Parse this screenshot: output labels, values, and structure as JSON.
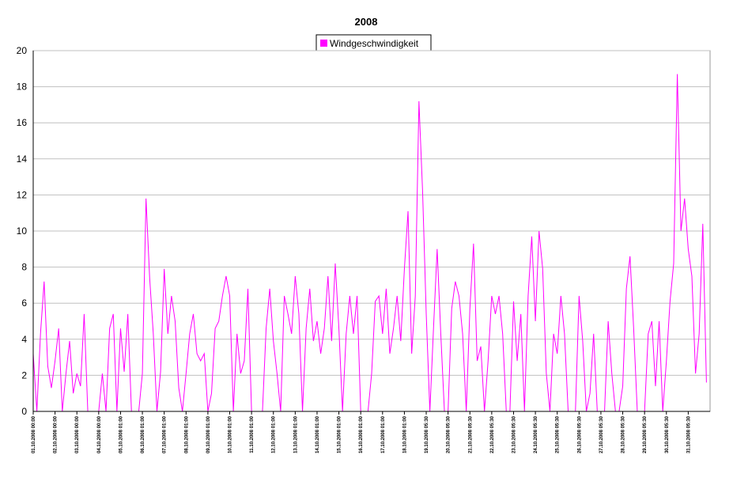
{
  "chart_data": {
    "type": "line",
    "title": "2008",
    "categories": [
      "01.10.2008 00:00",
      null,
      null,
      null,
      null,
      null,
      "02.10.2008 00:00",
      null,
      null,
      null,
      null,
      null,
      "03.10.2008 00:00",
      null,
      null,
      null,
      null,
      null,
      "04.10.2008 00:00",
      null,
      null,
      null,
      null,
      null,
      "05.10.2008 01:00",
      null,
      null,
      null,
      null,
      null,
      "06.10.2008 01:00",
      null,
      null,
      null,
      null,
      null,
      "07.10.2008 01:00",
      null,
      null,
      null,
      null,
      null,
      "08.10.2008 01:00",
      null,
      null,
      null,
      null,
      null,
      "09.10.2008 01:00",
      null,
      null,
      null,
      null,
      null,
      "10.10.2008 01:00",
      null,
      null,
      null,
      null,
      null,
      "11.10.2008 01:00",
      null,
      null,
      null,
      null,
      null,
      "12.10.2008 01:00",
      null,
      null,
      null,
      null,
      null,
      "13.10.2008 01:00",
      null,
      null,
      null,
      null,
      null,
      "14.10.2008 01:00",
      null,
      null,
      null,
      null,
      null,
      "15.10.2008 01:00",
      null,
      null,
      null,
      null,
      null,
      "16.10.2008 01:00",
      null,
      null,
      null,
      null,
      null,
      "17.10.2008 01:00",
      null,
      null,
      null,
      null,
      null,
      "18.10.2008 01:00",
      null,
      null,
      null,
      null,
      null,
      "19.10.2008 05:30",
      null,
      null,
      null,
      null,
      null,
      "20.10.2008 05:30",
      null,
      null,
      null,
      null,
      null,
      "21.10.2008 05:30",
      null,
      null,
      null,
      null,
      null,
      "22.10.2008 05:30",
      null,
      null,
      null,
      null,
      null,
      "23.10.2008 05:30",
      null,
      null,
      null,
      null,
      null,
      "24.10.2008 05:30",
      null,
      null,
      null,
      null,
      null,
      "25.10.2008 05:30",
      null,
      null,
      null,
      null,
      null,
      "26.10.2008 05:30",
      null,
      null,
      null,
      null,
      null,
      "27.10.2008 05:30",
      null,
      null,
      null,
      null,
      null,
      "28.10.2008 05:30",
      null,
      null,
      null,
      null,
      null,
      "29.10.2008 05:30",
      null,
      null,
      null,
      null,
      null,
      "30.10.2008 05:30",
      null,
      null,
      null,
      null,
      null,
      "31.10.2008 05:30",
      null,
      null,
      null,
      null,
      null
    ],
    "series": [
      {
        "name": "Windgeschwindigkeit",
        "color": "#ff00ff",
        "values": [
          3.2,
          0,
          4.3,
          7.2,
          2.5,
          1.3,
          2.8,
          4.6,
          0,
          2.1,
          3.9,
          1,
          2.1,
          1.4,
          5.4,
          0,
          0,
          0,
          0,
          2.1,
          0,
          4.6,
          5.4,
          0,
          4.6,
          2.2,
          5.4,
          0,
          0,
          0,
          2.1,
          11.8,
          7.4,
          4.3,
          0,
          2.2,
          7.9,
          4.3,
          6.4,
          5,
          1.3,
          0,
          2.1,
          4.3,
          5.4,
          3.2,
          2.8,
          3.2,
          0,
          1,
          4.6,
          5,
          6.4,
          7.5,
          6.4,
          0,
          4.3,
          2.1,
          2.8,
          6.8,
          0,
          0,
          0,
          0,
          4.6,
          6.8,
          3.9,
          2.1,
          0,
          6.4,
          5.4,
          4.3,
          7.5,
          5.4,
          0,
          4.6,
          6.8,
          3.9,
          5,
          3.2,
          4.6,
          7.5,
          3.9,
          8.2,
          4.6,
          0,
          4.3,
          6.4,
          4.3,
          6.4,
          0,
          0,
          0,
          2.1,
          6.1,
          6.4,
          4.3,
          6.8,
          3.2,
          4.6,
          6.4,
          3.9,
          7.9,
          11.1,
          3.2,
          6.4,
          17.2,
          12.2,
          5.4,
          0,
          4.6,
          9,
          4.3,
          0,
          0,
          5.7,
          7.2,
          6.4,
          4.3,
          0,
          5.7,
          9.3,
          2.8,
          3.6,
          0,
          2.8,
          6.4,
          5.4,
          6.4,
          4.3,
          0,
          0,
          6.1,
          2.8,
          5.4,
          0,
          6.4,
          9.7,
          5,
          10,
          7.9,
          2.1,
          0,
          4.3,
          3.2,
          6.4,
          4.3,
          0,
          0,
          0,
          6.4,
          3.9,
          0,
          1,
          4.3,
          0,
          0,
          0,
          5,
          2.1,
          0,
          0,
          1.4,
          6.8,
          8.6,
          4.6,
          0,
          0,
          0,
          4.3,
          5,
          1.4,
          5,
          0,
          2.8,
          6.1,
          8.2,
          18.7,
          10,
          11.8,
          9,
          7.5,
          2.1,
          4.3,
          10.4,
          1.6
        ]
      }
    ],
    "ylim": [
      0,
      20
    ],
    "yticks": [
      0,
      2,
      4,
      6,
      8,
      10,
      12,
      14,
      16,
      18,
      20
    ],
    "grid": true
  }
}
